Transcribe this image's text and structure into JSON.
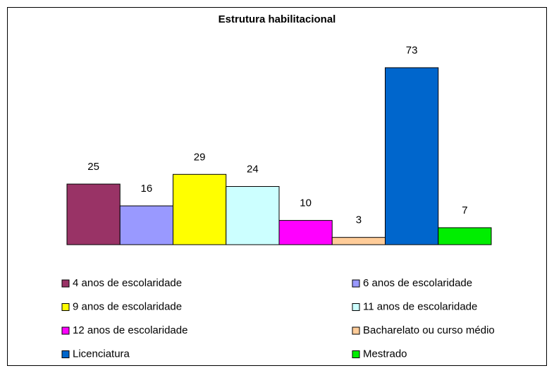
{
  "chart_data": {
    "type": "bar",
    "title": "Estrutura habilitacional",
    "categories": [
      "4 anos de escolaridade",
      "6 anos de escolaridade",
      "9 anos de escolaridade",
      "11 anos de escolaridade",
      "12 anos de escolaridade",
      "Bacharelato ou curso médio",
      "Licenciatura",
      "Mestrado"
    ],
    "values": [
      25,
      16,
      29,
      24,
      10,
      3,
      73,
      7
    ],
    "colors": [
      "#993366",
      "#9999ff",
      "#ffff00",
      "#ccffff",
      "#ff00ff",
      "#ffcc99",
      "#0066cc",
      "#00ee00"
    ]
  }
}
